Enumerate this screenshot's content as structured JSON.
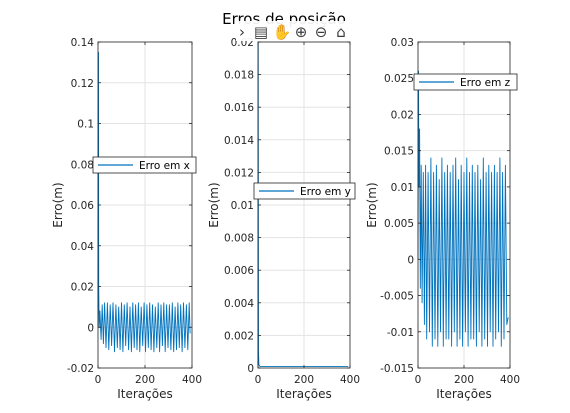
{
  "figure": {
    "title": "Erros de posição"
  },
  "toolbar": {
    "items": [
      {
        "name": "chevron-right-icon",
        "glyph": "›"
      },
      {
        "name": "data-tip-icon",
        "glyph": "▤"
      },
      {
        "name": "pan-hand-icon",
        "glyph": "✋"
      },
      {
        "name": "zoom-in-icon",
        "glyph": "⊕"
      },
      {
        "name": "zoom-out-icon",
        "glyph": "⊖"
      },
      {
        "name": "home-icon",
        "glyph": "⌂"
      }
    ]
  },
  "colors": {
    "series": "#0072BD",
    "grid": "#e3e3e3",
    "axis": "#262626",
    "background": "#ffffff"
  },
  "chart_data": [
    {
      "type": "line",
      "xlabel": "Iterações",
      "ylabel": "Erro(m)",
      "xlim": [
        0,
        400
      ],
      "ylim": [
        -0.02,
        0.14
      ],
      "xticks": [
        0,
        200,
        400
      ],
      "yticks": [
        -0.02,
        0,
        0.02,
        0.04,
        0.06,
        0.08,
        0.1,
        0.12,
        0.14
      ],
      "ytick_labels": [
        "-0.02",
        "0",
        "0.02",
        "0.04",
        "0.06",
        "0.08",
        "0.1",
        "0.12",
        "0.14"
      ],
      "grid": true,
      "legend_position": "mid-left",
      "series": [
        {
          "name": "Erro em x",
          "color": "#0072BD",
          "x": [
            0,
            2,
            3,
            5,
            8,
            13,
            18,
            23,
            28,
            34,
            40,
            46,
            52,
            58,
            64,
            70,
            76,
            82,
            88,
            94,
            100,
            106,
            112,
            118,
            124,
            130,
            136,
            142,
            148,
            154,
            160,
            166,
            172,
            178,
            184,
            190,
            196,
            202,
            208,
            214,
            220,
            226,
            232,
            238,
            244,
            250,
            256,
            262,
            268,
            274,
            280,
            286,
            292,
            298,
            304,
            310,
            316,
            322,
            328,
            334,
            340,
            346,
            352,
            358,
            364,
            370,
            376,
            382,
            388,
            392
          ],
          "y": [
            0.0,
            0.135,
            0.02,
            0.0,
            0.008,
            -0.006,
            0.011,
            -0.008,
            0.012,
            -0.01,
            0.012,
            -0.011,
            0.011,
            -0.009,
            0.012,
            -0.012,
            0.011,
            -0.01,
            0.01,
            -0.011,
            0.012,
            -0.012,
            0.011,
            -0.009,
            0.012,
            -0.011,
            0.01,
            -0.012,
            0.012,
            -0.01,
            0.011,
            -0.011,
            0.012,
            -0.012,
            0.01,
            -0.009,
            0.012,
            -0.012,
            0.011,
            -0.01,
            0.012,
            -0.011,
            0.011,
            -0.012,
            0.01,
            -0.01,
            0.012,
            -0.012,
            0.011,
            -0.009,
            0.012,
            -0.012,
            0.011,
            -0.01,
            0.011,
            -0.011,
            0.012,
            -0.012,
            0.01,
            -0.011,
            0.012,
            -0.01,
            0.011,
            -0.012,
            0.012,
            -0.01,
            0.011,
            -0.011,
            0.012,
            -0.003
          ]
        }
      ]
    },
    {
      "type": "line",
      "xlabel": "Iterações",
      "ylabel": "Erro(m)",
      "xlim": [
        0,
        400
      ],
      "ylim": [
        0,
        0.02
      ],
      "xticks": [
        0,
        200,
        400
      ],
      "yticks": [
        0,
        0.002,
        0.004,
        0.006,
        0.008,
        0.01,
        0.012,
        0.014,
        0.016,
        0.018,
        0.02
      ],
      "ytick_labels": [
        "0",
        "0.002",
        "0.004",
        "0.006",
        "0.008",
        "0.01",
        "0.012",
        "0.014",
        "0.016",
        "0.018",
        "0.02"
      ],
      "grid": true,
      "legend_position": "mid-right",
      "series": [
        {
          "name": "Erro em y",
          "color": "#0072BD",
          "x": [
            0,
            1,
            2,
            4,
            8,
            50,
            100,
            150,
            200,
            250,
            300,
            350,
            392
          ],
          "y": [
            0.0,
            0.02,
            0.001,
            0.0002,
            0.0001,
            0.0001,
            0.0001,
            0.0001,
            0.0001,
            0.0001,
            0.0001,
            0.0001,
            0.0001
          ]
        }
      ]
    },
    {
      "type": "line",
      "xlabel": "Iterações",
      "ylabel": "Erro(m)",
      "xlim": [
        0,
        400
      ],
      "ylim": [
        -0.015,
        0.03
      ],
      "xticks": [
        0,
        200,
        400
      ],
      "yticks": [
        -0.015,
        -0.01,
        -0.005,
        0,
        0.005,
        0.01,
        0.015,
        0.02,
        0.025,
        0.03
      ],
      "ytick_labels": [
        "-0.015",
        "-0.01",
        "-0.005",
        "0",
        "0.005",
        "0.01",
        "0.015",
        "0.02",
        "0.025",
        "0.03"
      ],
      "grid": true,
      "legend_position": "top",
      "series": [
        {
          "name": "Erro em z",
          "color": "#0072BD",
          "x": [
            0,
            2,
            4,
            7,
            10,
            14,
            18,
            23,
            28,
            33,
            38,
            44,
            50,
            56,
            62,
            68,
            74,
            80,
            86,
            92,
            98,
            104,
            110,
            116,
            122,
            128,
            134,
            140,
            146,
            152,
            158,
            164,
            170,
            176,
            182,
            188,
            194,
            200,
            206,
            212,
            218,
            224,
            230,
            236,
            242,
            248,
            254,
            260,
            266,
            272,
            278,
            284,
            290,
            296,
            302,
            308,
            314,
            320,
            326,
            332,
            338,
            344,
            350,
            356,
            362,
            368,
            374,
            380,
            386,
            392
          ],
          "y": [
            0.0,
            0.026,
            0.01,
            0.018,
            -0.004,
            0.013,
            -0.006,
            0.012,
            -0.009,
            0.013,
            -0.011,
            0.012,
            -0.01,
            0.014,
            -0.012,
            0.012,
            -0.011,
            0.013,
            -0.012,
            0.011,
            -0.01,
            0.014,
            -0.012,
            0.012,
            -0.011,
            0.013,
            -0.011,
            0.012,
            -0.012,
            0.013,
            -0.01,
            0.014,
            -0.012,
            0.011,
            -0.011,
            0.013,
            -0.012,
            0.012,
            -0.01,
            0.014,
            -0.012,
            0.012,
            -0.011,
            0.013,
            -0.011,
            0.012,
            -0.012,
            0.013,
            -0.01,
            0.011,
            -0.012,
            0.014,
            -0.011,
            0.012,
            -0.012,
            0.013,
            -0.01,
            0.012,
            -0.012,
            0.013,
            -0.011,
            0.012,
            -0.01,
            0.014,
            -0.012,
            0.012,
            -0.011,
            0.013,
            -0.009,
            -0.008
          ]
        }
      ]
    }
  ]
}
